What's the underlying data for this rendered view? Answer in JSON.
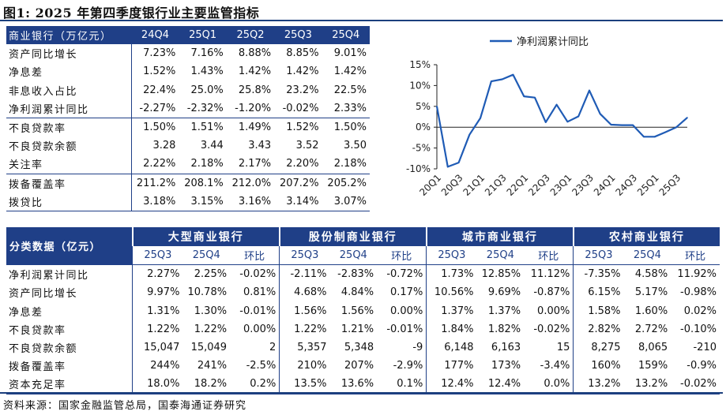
{
  "title": "图1:  2025 年第四季度银行业主要监管指标",
  "table1": {
    "header_label": "商业银行（万亿元）",
    "columns": [
      "24Q4",
      "25Q1",
      "25Q2",
      "25Q3",
      "25Q4"
    ],
    "rows": [
      {
        "label": "资产同比增长",
        "values": [
          "7.23%",
          "7.16%",
          "8.88%",
          "8.85%",
          "9.01%"
        ]
      },
      {
        "label": "净息差",
        "values": [
          "1.52%",
          "1.43%",
          "1.42%",
          "1.42%",
          "1.42%"
        ]
      },
      {
        "label": "非息收入占比",
        "values": [
          "22.4%",
          "25.0%",
          "25.8%",
          "23.2%",
          "22.5%"
        ]
      },
      {
        "label": "净利润累计同比",
        "values": [
          "-2.27%",
          "-2.32%",
          "-1.20%",
          "-0.02%",
          "2.33%"
        ]
      },
      {
        "label": "不良贷款率",
        "values": [
          "1.50%",
          "1.51%",
          "1.49%",
          "1.52%",
          "1.50%"
        ]
      },
      {
        "label": "不良贷款余额",
        "values": [
          "3.28",
          "3.44",
          "3.43",
          "3.52",
          "3.50"
        ]
      },
      {
        "label": "关注率",
        "values": [
          "2.22%",
          "2.18%",
          "2.17%",
          "2.20%",
          "2.18%"
        ]
      },
      {
        "label": "拨备覆盖率",
        "values": [
          "211.2%",
          "208.1%",
          "212.0%",
          "207.2%",
          "205.2%"
        ]
      },
      {
        "label": "拨贷比",
        "values": [
          "3.18%",
          "3.15%",
          "3.16%",
          "3.14%",
          "3.07%"
        ]
      }
    ]
  },
  "table2": {
    "header_label": "分类数据（亿元）",
    "groups": [
      "大型商业银行",
      "股份制商业银行",
      "城市商业银行",
      "农村商业银行"
    ],
    "subcolumns": [
      "25Q3",
      "25Q4",
      "环比"
    ],
    "rows": [
      {
        "label": "净利润累计同比",
        "values": [
          "2.27%",
          "2.25%",
          "-0.02%",
          "-2.11%",
          "-2.83%",
          "-0.72%",
          "1.73%",
          "12.85%",
          "11.12%",
          "-7.35%",
          "4.58%",
          "11.92%"
        ]
      },
      {
        "label": "资产同比增长",
        "values": [
          "9.97%",
          "10.78%",
          "0.81%",
          "4.68%",
          "4.84%",
          "0.17%",
          "10.56%",
          "9.69%",
          "-0.87%",
          "6.15%",
          "5.17%",
          "-0.98%"
        ]
      },
      {
        "label": "净息差",
        "values": [
          "1.31%",
          "1.30%",
          "-0.01%",
          "1.56%",
          "1.56%",
          "0.00%",
          "1.37%",
          "1.37%",
          "0.00%",
          "1.58%",
          "1.60%",
          "0.02%"
        ]
      },
      {
        "label": "不良贷款率",
        "values": [
          "1.22%",
          "1.22%",
          "0.00%",
          "1.22%",
          "1.21%",
          "-0.01%",
          "1.84%",
          "1.82%",
          "-0.02%",
          "2.82%",
          "2.72%",
          "-0.10%"
        ]
      },
      {
        "label": "不良贷款余额",
        "values": [
          "15,047",
          "15,049",
          "2",
          "5,357",
          "5,348",
          "-9",
          "6,148",
          "6,163",
          "15",
          "8,275",
          "8,065",
          "-210"
        ]
      },
      {
        "label": "拨备覆盖率",
        "values": [
          "244%",
          "241%",
          "-2.5%",
          "210%",
          "207%",
          "-2.9%",
          "177%",
          "173%",
          "-3.4%",
          "160%",
          "159%",
          "-0.9%"
        ]
      },
      {
        "label": "资本充足率",
        "values": [
          "18.0%",
          "18.2%",
          "0.2%",
          "13.5%",
          "13.6%",
          "0.1%",
          "12.4%",
          "12.4%",
          "0.0%",
          "13.2%",
          "13.2%",
          "-0.02%"
        ]
      }
    ]
  },
  "source": "资料来源：国家金融监管总局，国泰海通证券研究",
  "chart_data": {
    "type": "line",
    "series": [
      {
        "name": "净利润累计同比",
        "color": "#1f5bb5",
        "x": [
          "20Q1",
          "20Q2",
          "20Q3",
          "20Q4",
          "21Q1",
          "21Q2",
          "21Q3",
          "21Q4",
          "22Q1",
          "22Q2",
          "22Q3",
          "22Q4",
          "23Q1",
          "23Q2",
          "23Q3",
          "23Q4",
          "24Q1",
          "24Q2",
          "24Q3",
          "24Q4",
          "25Q1",
          "25Q2",
          "25Q3",
          "25Q4"
        ],
        "values": [
          5.0,
          -9.5,
          -8.5,
          -1.8,
          2.2,
          11.0,
          11.5,
          12.6,
          7.4,
          7.1,
          1.2,
          5.4,
          1.3,
          2.6,
          8.8,
          3.2,
          0.6,
          0.5,
          0.5,
          -2.3,
          -2.3,
          -1.2,
          0.0,
          2.3
        ]
      }
    ],
    "x_tick_labels": [
      "20Q1",
      "20Q3",
      "21Q1",
      "21Q3",
      "22Q1",
      "22Q3",
      "23Q1",
      "23Q3",
      "24Q1",
      "24Q3",
      "25Q1",
      "25Q3"
    ],
    "y_ticks": [
      "15%",
      "10%",
      "5%",
      "0%",
      "-5%",
      "-10%"
    ],
    "ylim": [
      -10,
      15
    ],
    "legend": "top"
  }
}
